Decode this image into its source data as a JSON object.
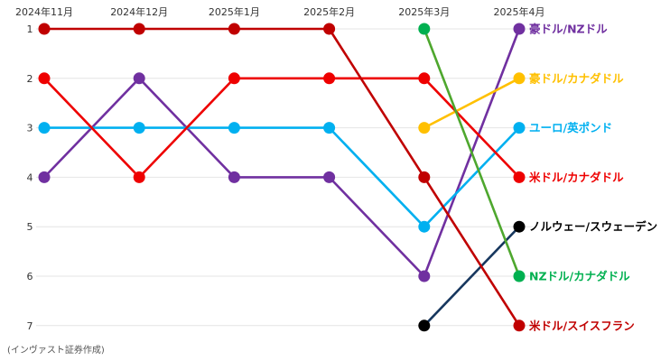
{
  "note": "(インヴァスト証券作成)",
  "chart_data": {
    "type": "line",
    "subtype": "bump",
    "categories": [
      "2024年11月",
      "2024年12月",
      "2025年1月",
      "2025年2月",
      "2025年3月",
      "2025年4月"
    ],
    "y_ticks": [
      "1",
      "2",
      "3",
      "4",
      "5",
      "6",
      "7"
    ],
    "ylim": [
      1,
      7
    ],
    "y_reversed": true,
    "grid": true,
    "series": [
      {
        "name": "豪ドル/NZドル",
        "color": "#7030a0",
        "values": [
          4,
          2,
          4,
          4,
          6,
          1
        ]
      },
      {
        "name": "豪ドル/カナダドル",
        "color": "#ffc000",
        "values": [
          null,
          null,
          null,
          null,
          3,
          2
        ]
      },
      {
        "name": "ユーロ/英ポンド",
        "color": "#00b0f0",
        "values": [
          3,
          3,
          3,
          3,
          5,
          3
        ]
      },
      {
        "name": "米ドル/カナダドル",
        "color": "#ee0000",
        "values": [
          2,
          4,
          2,
          2,
          2,
          4
        ]
      },
      {
        "name": "ノルウェー/スウェーデン",
        "color": "#000000",
        "line_color": "#17375e",
        "values": [
          null,
          null,
          null,
          null,
          7,
          5
        ]
      },
      {
        "name": "NZドル/カナダドル",
        "color": "#00b050",
        "line_color": "#4ea72e",
        "values": [
          null,
          null,
          null,
          null,
          1,
          6
        ]
      },
      {
        "name": "米ドル/スイスフラン",
        "color": "#c00000",
        "values": [
          1,
          1,
          1,
          1,
          4,
          7
        ]
      }
    ]
  }
}
